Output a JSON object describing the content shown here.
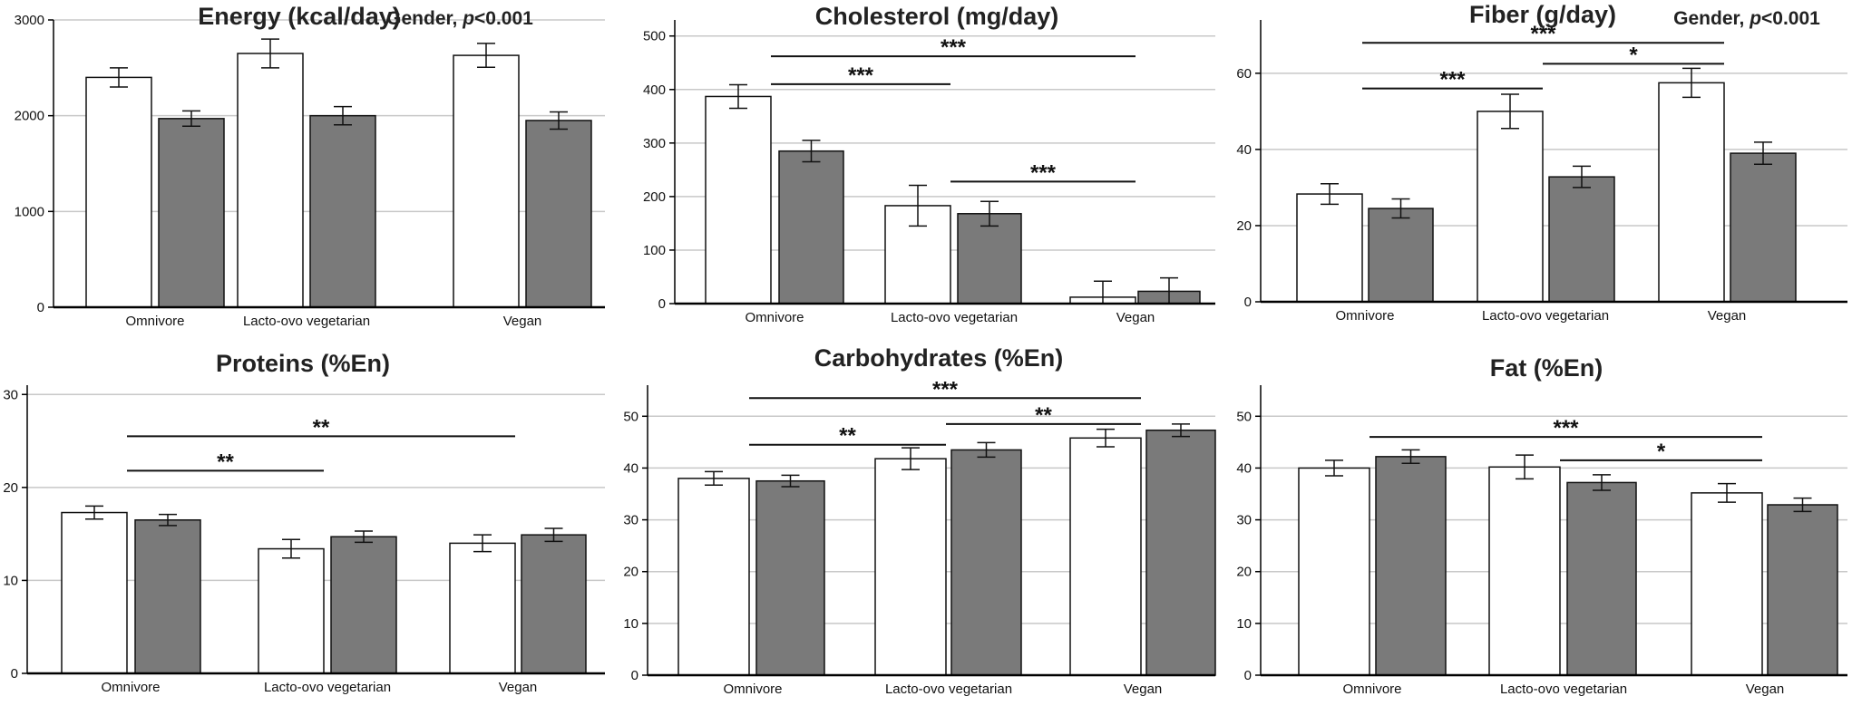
{
  "colors": {
    "female_bar": "#ffffff",
    "male_bar": "#7a7a7a",
    "grid": "#c8c8c8",
    "axis": "#000000"
  },
  "chart_data": [
    {
      "type": "bar",
      "title": "Energy (kcal/day)",
      "note_prefix": "Gender, ",
      "note_p": "p",
      "note_suffix": "<0.001",
      "categories": [
        "Omnivore",
        "Lacto-ovo vegetarian",
        "Vegan"
      ],
      "series": [
        {
          "name": "white",
          "values": [
            2400,
            2650,
            2630
          ],
          "err": [
            100,
            150,
            125
          ]
        },
        {
          "name": "gray",
          "values": [
            1970,
            2000,
            1950
          ],
          "err": [
            80,
            95,
            90
          ]
        }
      ],
      "ylim": [
        0,
        3000
      ],
      "yticks": [
        0,
        1000,
        2000,
        3000
      ],
      "tick_labels": [
        "0",
        "1000",
        "2000",
        "3000"
      ],
      "grid": true,
      "significance": []
    },
    {
      "type": "bar",
      "title": "Cholesterol (mg/day)",
      "categories": [
        "Omnivore",
        "Lacto-ovo vegetarian",
        "Vegan"
      ],
      "series": [
        {
          "name": "white",
          "values": [
            387,
            183,
            12
          ],
          "err": [
            22,
            38,
            30
          ]
        },
        {
          "name": "gray",
          "values": [
            285,
            168,
            23
          ],
          "err": [
            20,
            23,
            25
          ]
        }
      ],
      "ylim": [
        0,
        530
      ],
      "yticks": [
        0,
        100,
        200,
        300,
        400,
        500
      ],
      "tick_labels": [
        "0",
        "100",
        "200",
        "300",
        "400",
        "500"
      ],
      "grid": true,
      "significance": [
        {
          "x1": 0,
          "x2": 2,
          "level": 462,
          "label": "***"
        },
        {
          "x1": 0,
          "x2": 1,
          "level": 410,
          "label": "***"
        },
        {
          "x1": 1,
          "x2": 2,
          "level": 228,
          "label": "***"
        }
      ]
    },
    {
      "type": "bar",
      "title": "Fiber (g/day)",
      "note_prefix": "Gender, ",
      "note_p": "p",
      "note_suffix": "<0.001",
      "categories": [
        "Omnivore",
        "Lacto-ovo vegetarian",
        "Vegan"
      ],
      "series": [
        {
          "name": "white",
          "values": [
            28.3,
            50,
            57.5
          ],
          "err": [
            2.7,
            4.5,
            3.8
          ]
        },
        {
          "name": "gray",
          "values": [
            24.5,
            32.8,
            39
          ],
          "err": [
            2.5,
            2.8,
            2.9
          ]
        }
      ],
      "ylim": [
        0,
        74
      ],
      "yticks": [
        0,
        20,
        40,
        60
      ],
      "tick_labels": [
        "0",
        "20",
        "40",
        "60"
      ],
      "grid": true,
      "significance": [
        {
          "x1": 0,
          "x2": 2,
          "level": 68,
          "label": "***"
        },
        {
          "x1": 0,
          "x2": 1,
          "level": 56,
          "label": "***"
        },
        {
          "x1": 1,
          "x2": 2,
          "level": 62.5,
          "label": "*"
        }
      ]
    },
    {
      "type": "bar",
      "title": "Proteins (%En)",
      "categories": [
        "Omnivore",
        "Lacto-ovo vegetarian",
        "Vegan"
      ],
      "series": [
        {
          "name": "white",
          "values": [
            17.3,
            13.4,
            14
          ],
          "err": [
            0.7,
            1.0,
            0.9
          ]
        },
        {
          "name": "gray",
          "values": [
            16.5,
            14.7,
            14.9
          ],
          "err": [
            0.6,
            0.6,
            0.7
          ]
        }
      ],
      "ylim": [
        0,
        31
      ],
      "yticks": [
        0,
        10,
        20,
        30
      ],
      "tick_labels": [
        "0",
        "10",
        "20",
        "30"
      ],
      "grid": true,
      "significance": [
        {
          "x1": 0,
          "x2": 2,
          "level": 25.5,
          "label": "**"
        },
        {
          "x1": 0,
          "x2": 1,
          "level": 21.8,
          "label": "**"
        }
      ]
    },
    {
      "type": "bar",
      "title": "Carbohydrates (%En)",
      "categories": [
        "Omnivore",
        "Lacto-ovo vegetarian",
        "Vegan"
      ],
      "series": [
        {
          "name": "white",
          "values": [
            38,
            41.8,
            45.8
          ],
          "err": [
            1.3,
            2.1,
            1.7
          ]
        },
        {
          "name": "gray",
          "values": [
            37.5,
            43.5,
            47.3
          ],
          "err": [
            1.1,
            1.4,
            1.2
          ]
        }
      ],
      "ylim": [
        0,
        56
      ],
      "yticks": [
        0,
        10,
        20,
        30,
        40,
        50
      ],
      "tick_labels": [
        "0",
        "10",
        "20",
        "30",
        "40",
        "50"
      ],
      "grid": true,
      "significance": [
        {
          "x1": 0,
          "x2": 2,
          "level": 53.5,
          "label": "***"
        },
        {
          "x1": 0,
          "x2": 1,
          "level": 44.5,
          "label": "**"
        },
        {
          "x1": 1,
          "x2": 2,
          "level": 48.5,
          "label": "**"
        }
      ]
    },
    {
      "type": "bar",
      "title": "Fat (%En)",
      "categories": [
        "Omnivore",
        "Lacto-ovo vegetarian",
        "Vegan"
      ],
      "series": [
        {
          "name": "white",
          "values": [
            40,
            40.2,
            35.2
          ],
          "err": [
            1.5,
            2.3,
            1.8
          ]
        },
        {
          "name": "gray",
          "values": [
            42.2,
            37.2,
            32.9
          ],
          "err": [
            1.3,
            1.5,
            1.3
          ]
        }
      ],
      "ylim": [
        0,
        56
      ],
      "yticks": [
        0,
        10,
        20,
        30,
        40,
        50
      ],
      "tick_labels": [
        "0",
        "10",
        "20",
        "30",
        "40",
        "50"
      ],
      "grid": true,
      "significance": [
        {
          "x1": 0,
          "x2": 2,
          "level": 46,
          "label": "***"
        },
        {
          "x1": 1,
          "x2": 2,
          "level": 41.5,
          "label": "*"
        }
      ]
    }
  ]
}
